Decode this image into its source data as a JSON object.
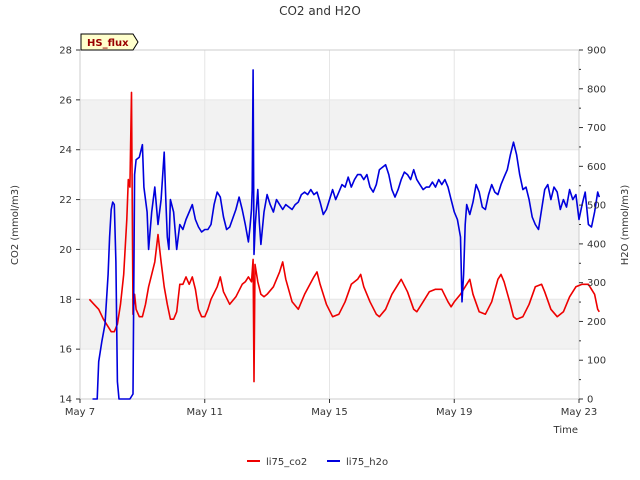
{
  "chart_data": {
    "type": "line",
    "title": "CO2 and H2O",
    "badge": "HS_flux",
    "xlabel": "Time",
    "ylabel_left": "CO2 (mmol/m3)",
    "ylabel_right": "H2O (mmol/m3)",
    "x_range": [
      0,
      16
    ],
    "ylim_left": [
      14,
      28
    ],
    "ylim_right": [
      0,
      900
    ],
    "x_ticks": [
      {
        "value": 0,
        "label": "May 7"
      },
      {
        "value": 4,
        "label": "May 11"
      },
      {
        "value": 8,
        "label": "May 15"
      },
      {
        "value": 12,
        "label": "May 19"
      },
      {
        "value": 16,
        "label": "May 23"
      }
    ],
    "y_ticks_left": [
      14,
      16,
      18,
      20,
      22,
      24,
      26,
      28
    ],
    "y_ticks_right": [
      0,
      100,
      200,
      300,
      400,
      500,
      600,
      700,
      800,
      900
    ],
    "bands_left": [
      [
        16,
        18
      ],
      [
        20,
        22
      ],
      [
        24,
        26
      ]
    ],
    "colors": {
      "co2": "#ee0000",
      "h2o": "#0000dd",
      "band": "#f2f2f2",
      "badge_bg": "#ffffcc",
      "badge_text": "#990000"
    },
    "series": [
      {
        "name": "li75_co2",
        "axis": "left",
        "color": "#ee0000",
        "points": [
          [
            0.3,
            18.0
          ],
          [
            0.45,
            17.8
          ],
          [
            0.6,
            17.6
          ],
          [
            0.75,
            17.2
          ],
          [
            0.9,
            16.9
          ],
          [
            1.0,
            16.7
          ],
          [
            1.1,
            16.7
          ],
          [
            1.2,
            17.0
          ],
          [
            1.3,
            17.8
          ],
          [
            1.4,
            19.0
          ],
          [
            1.5,
            21.2
          ],
          [
            1.55,
            22.8
          ],
          [
            1.6,
            22.5
          ],
          [
            1.65,
            26.3
          ],
          [
            1.7,
            17.4
          ],
          [
            1.75,
            18.2
          ],
          [
            1.8,
            17.6
          ],
          [
            1.9,
            17.3
          ],
          [
            2.0,
            17.3
          ],
          [
            2.1,
            17.8
          ],
          [
            2.2,
            18.5
          ],
          [
            2.3,
            19.0
          ],
          [
            2.4,
            19.5
          ],
          [
            2.5,
            20.6
          ],
          [
            2.6,
            19.5
          ],
          [
            2.7,
            18.5
          ],
          [
            2.8,
            17.8
          ],
          [
            2.9,
            17.2
          ],
          [
            3.0,
            17.2
          ],
          [
            3.1,
            17.5
          ],
          [
            3.2,
            18.6
          ],
          [
            3.3,
            18.6
          ],
          [
            3.4,
            18.9
          ],
          [
            3.5,
            18.6
          ],
          [
            3.6,
            18.9
          ],
          [
            3.7,
            18.4
          ],
          [
            3.8,
            17.6
          ],
          [
            3.9,
            17.3
          ],
          [
            4.0,
            17.3
          ],
          [
            4.1,
            17.6
          ],
          [
            4.2,
            18.0
          ],
          [
            4.4,
            18.5
          ],
          [
            4.5,
            18.9
          ],
          [
            4.6,
            18.3
          ],
          [
            4.8,
            17.8
          ],
          [
            5.0,
            18.1
          ],
          [
            5.2,
            18.6
          ],
          [
            5.3,
            18.7
          ],
          [
            5.4,
            18.9
          ],
          [
            5.5,
            18.7
          ],
          [
            5.55,
            19.6
          ],
          [
            5.58,
            14.7
          ],
          [
            5.61,
            19.4
          ],
          [
            5.7,
            18.7
          ],
          [
            5.8,
            18.2
          ],
          [
            5.9,
            18.1
          ],
          [
            6.0,
            18.2
          ],
          [
            6.2,
            18.5
          ],
          [
            6.4,
            19.1
          ],
          [
            6.5,
            19.5
          ],
          [
            6.6,
            18.8
          ],
          [
            6.8,
            17.9
          ],
          [
            7.0,
            17.6
          ],
          [
            7.2,
            18.2
          ],
          [
            7.5,
            18.9
          ],
          [
            7.6,
            19.1
          ],
          [
            7.7,
            18.6
          ],
          [
            7.9,
            17.8
          ],
          [
            8.1,
            17.3
          ],
          [
            8.3,
            17.4
          ],
          [
            8.5,
            17.9
          ],
          [
            8.7,
            18.6
          ],
          [
            8.9,
            18.8
          ],
          [
            9.0,
            19.0
          ],
          [
            9.1,
            18.5
          ],
          [
            9.3,
            17.9
          ],
          [
            9.5,
            17.4
          ],
          [
            9.6,
            17.3
          ],
          [
            9.8,
            17.6
          ],
          [
            10.0,
            18.2
          ],
          [
            10.2,
            18.6
          ],
          [
            10.3,
            18.8
          ],
          [
            10.5,
            18.3
          ],
          [
            10.7,
            17.6
          ],
          [
            10.8,
            17.5
          ],
          [
            11.0,
            17.9
          ],
          [
            11.2,
            18.3
          ],
          [
            11.4,
            18.4
          ],
          [
            11.6,
            18.4
          ],
          [
            11.8,
            17.9
          ],
          [
            11.9,
            17.7
          ],
          [
            12.0,
            17.9
          ],
          [
            12.2,
            18.2
          ],
          [
            12.4,
            18.6
          ],
          [
            12.5,
            18.8
          ],
          [
            12.6,
            18.2
          ],
          [
            12.8,
            17.5
          ],
          [
            13.0,
            17.4
          ],
          [
            13.2,
            17.9
          ],
          [
            13.4,
            18.8
          ],
          [
            13.5,
            19.0
          ],
          [
            13.6,
            18.7
          ],
          [
            13.8,
            17.8
          ],
          [
            13.9,
            17.3
          ],
          [
            14.0,
            17.2
          ],
          [
            14.2,
            17.3
          ],
          [
            14.4,
            17.8
          ],
          [
            14.6,
            18.5
          ],
          [
            14.8,
            18.6
          ],
          [
            14.9,
            18.3
          ],
          [
            15.1,
            17.6
          ],
          [
            15.3,
            17.3
          ],
          [
            15.5,
            17.5
          ],
          [
            15.7,
            18.1
          ],
          [
            15.9,
            18.5
          ],
          [
            16.1,
            18.6
          ],
          [
            16.3,
            18.6
          ],
          [
            16.5,
            18.2
          ],
          [
            16.6,
            17.6
          ],
          [
            16.65,
            17.5
          ]
        ]
      },
      {
        "name": "li75_h2o",
        "axis": "left",
        "color": "#0000dd",
        "points": [
          [
            0.4,
            14.0
          ],
          [
            0.55,
            14.0
          ],
          [
            0.6,
            15.5
          ],
          [
            0.7,
            16.3
          ],
          [
            0.8,
            17.0
          ],
          [
            0.9,
            19.0
          ],
          [
            0.95,
            20.5
          ],
          [
            1.0,
            21.6
          ],
          [
            1.05,
            21.9
          ],
          [
            1.1,
            21.8
          ],
          [
            1.15,
            19.5
          ],
          [
            1.2,
            14.7
          ],
          [
            1.25,
            14.0
          ],
          [
            1.4,
            14.0
          ],
          [
            1.6,
            14.0
          ],
          [
            1.7,
            14.2
          ],
          [
            1.75,
            23.0
          ],
          [
            1.8,
            23.6
          ],
          [
            1.9,
            23.7
          ],
          [
            2.0,
            24.2
          ],
          [
            2.05,
            22.5
          ],
          [
            2.1,
            22.0
          ],
          [
            2.15,
            21.5
          ],
          [
            2.2,
            20.0
          ],
          [
            2.3,
            21.5
          ],
          [
            2.4,
            22.5
          ],
          [
            2.5,
            21.0
          ],
          [
            2.6,
            22.0
          ],
          [
            2.7,
            23.9
          ],
          [
            2.75,
            22.0
          ],
          [
            2.8,
            20.5
          ],
          [
            2.85,
            20.0
          ],
          [
            2.9,
            22.0
          ],
          [
            3.0,
            21.5
          ],
          [
            3.1,
            20.0
          ],
          [
            3.2,
            21.0
          ],
          [
            3.3,
            20.8
          ],
          [
            3.4,
            21.2
          ],
          [
            3.5,
            21.5
          ],
          [
            3.6,
            21.8
          ],
          [
            3.7,
            21.2
          ],
          [
            3.8,
            20.9
          ],
          [
            3.9,
            20.7
          ],
          [
            4.0,
            20.8
          ],
          [
            4.1,
            20.8
          ],
          [
            4.2,
            21.0
          ],
          [
            4.3,
            21.8
          ],
          [
            4.4,
            22.3
          ],
          [
            4.5,
            22.1
          ],
          [
            4.6,
            21.3
          ],
          [
            4.7,
            20.8
          ],
          [
            4.8,
            20.9
          ],
          [
            5.0,
            21.6
          ],
          [
            5.1,
            22.1
          ],
          [
            5.2,
            21.6
          ],
          [
            5.3,
            21.0
          ],
          [
            5.4,
            20.3
          ],
          [
            5.45,
            20.9
          ],
          [
            5.5,
            21.6
          ],
          [
            5.52,
            22.4
          ],
          [
            5.55,
            27.2
          ],
          [
            5.58,
            19.8
          ],
          [
            5.62,
            21.0
          ],
          [
            5.7,
            22.4
          ],
          [
            5.75,
            21.1
          ],
          [
            5.8,
            20.2
          ],
          [
            5.9,
            21.5
          ],
          [
            6.0,
            22.2
          ],
          [
            6.1,
            21.8
          ],
          [
            6.2,
            21.5
          ],
          [
            6.3,
            22.0
          ],
          [
            6.4,
            21.8
          ],
          [
            6.5,
            21.6
          ],
          [
            6.6,
            21.8
          ],
          [
            6.7,
            21.7
          ],
          [
            6.8,
            21.6
          ],
          [
            6.9,
            21.8
          ],
          [
            7.0,
            21.9
          ],
          [
            7.1,
            22.2
          ],
          [
            7.2,
            22.3
          ],
          [
            7.3,
            22.2
          ],
          [
            7.4,
            22.4
          ],
          [
            7.5,
            22.2
          ],
          [
            7.6,
            22.3
          ],
          [
            7.7,
            21.9
          ],
          [
            7.8,
            21.4
          ],
          [
            7.9,
            21.6
          ],
          [
            8.0,
            22.0
          ],
          [
            8.1,
            22.4
          ],
          [
            8.2,
            22.0
          ],
          [
            8.3,
            22.3
          ],
          [
            8.4,
            22.6
          ],
          [
            8.5,
            22.5
          ],
          [
            8.6,
            22.9
          ],
          [
            8.7,
            22.5
          ],
          [
            8.8,
            22.8
          ],
          [
            8.9,
            23.0
          ],
          [
            9.0,
            23.0
          ],
          [
            9.1,
            22.8
          ],
          [
            9.2,
            23.0
          ],
          [
            9.3,
            22.5
          ],
          [
            9.4,
            22.3
          ],
          [
            9.5,
            22.6
          ],
          [
            9.6,
            23.2
          ],
          [
            9.7,
            23.3
          ],
          [
            9.8,
            23.4
          ],
          [
            9.9,
            23.0
          ],
          [
            10.0,
            22.4
          ],
          [
            10.1,
            22.1
          ],
          [
            10.2,
            22.4
          ],
          [
            10.3,
            22.8
          ],
          [
            10.4,
            23.1
          ],
          [
            10.5,
            23.0
          ],
          [
            10.6,
            22.8
          ],
          [
            10.7,
            23.2
          ],
          [
            10.8,
            22.8
          ],
          [
            10.9,
            22.6
          ],
          [
            11.0,
            22.4
          ],
          [
            11.1,
            22.5
          ],
          [
            11.2,
            22.5
          ],
          [
            11.3,
            22.7
          ],
          [
            11.4,
            22.5
          ],
          [
            11.5,
            22.8
          ],
          [
            11.6,
            22.6
          ],
          [
            11.7,
            22.8
          ],
          [
            11.8,
            22.5
          ],
          [
            11.9,
            22.0
          ],
          [
            12.0,
            21.5
          ],
          [
            12.1,
            21.2
          ],
          [
            12.2,
            20.5
          ],
          [
            12.25,
            17.9
          ],
          [
            12.3,
            19.0
          ],
          [
            12.35,
            21.0
          ],
          [
            12.4,
            21.8
          ],
          [
            12.5,
            21.4
          ],
          [
            12.6,
            21.9
          ],
          [
            12.7,
            22.6
          ],
          [
            12.8,
            22.3
          ],
          [
            12.9,
            21.7
          ],
          [
            13.0,
            21.6
          ],
          [
            13.1,
            22.2
          ],
          [
            13.2,
            22.6
          ],
          [
            13.3,
            22.3
          ],
          [
            13.4,
            22.2
          ],
          [
            13.5,
            22.6
          ],
          [
            13.6,
            22.9
          ],
          [
            13.7,
            23.2
          ],
          [
            13.8,
            23.8
          ],
          [
            13.9,
            24.3
          ],
          [
            14.0,
            23.8
          ],
          [
            14.1,
            23.0
          ],
          [
            14.2,
            22.4
          ],
          [
            14.3,
            22.5
          ],
          [
            14.4,
            22.0
          ],
          [
            14.5,
            21.3
          ],
          [
            14.6,
            21.0
          ],
          [
            14.7,
            20.8
          ],
          [
            14.8,
            21.6
          ],
          [
            14.9,
            22.4
          ],
          [
            15.0,
            22.6
          ],
          [
            15.1,
            22.0
          ],
          [
            15.2,
            22.5
          ],
          [
            15.3,
            22.3
          ],
          [
            15.4,
            21.6
          ],
          [
            15.5,
            22.0
          ],
          [
            15.6,
            21.7
          ],
          [
            15.7,
            22.4
          ],
          [
            15.8,
            22.0
          ],
          [
            15.9,
            22.2
          ],
          [
            16.0,
            21.2
          ],
          [
            16.1,
            21.8
          ],
          [
            16.2,
            22.3
          ],
          [
            16.3,
            21.0
          ],
          [
            16.4,
            20.9
          ],
          [
            16.5,
            21.5
          ],
          [
            16.6,
            22.3
          ],
          [
            16.65,
            22.1
          ]
        ]
      }
    ],
    "legend": [
      {
        "name": "li75_co2",
        "color": "#ee0000"
      },
      {
        "name": "li75_h2o",
        "color": "#0000dd"
      }
    ],
    "legend_position": "bottom-center"
  }
}
